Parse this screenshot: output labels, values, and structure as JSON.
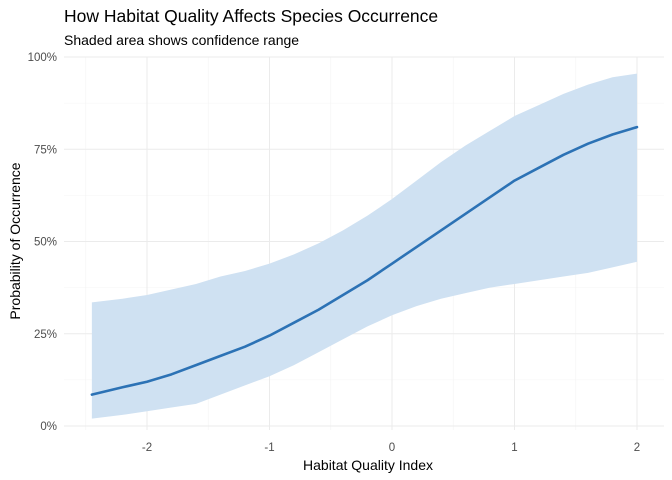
{
  "chart_data": {
    "type": "line",
    "title": "How Habitat Quality Affects Species Occurrence",
    "subtitle": "Shaded area shows confidence range",
    "xlabel": "Habitat Quality Index",
    "ylabel": "Probability of Occurrence",
    "xlim": [
      -2.6,
      2.2
    ],
    "ylim": [
      0,
      1
    ],
    "x_ticks": [
      -2,
      -1,
      0,
      1,
      2
    ],
    "x_tick_labels": [
      "-2",
      "-1",
      "0",
      "1",
      "2"
    ],
    "y_ticks": [
      0,
      0.25,
      0.5,
      0.75,
      1
    ],
    "y_tick_labels": [
      "0%",
      "25%",
      "50%",
      "75%",
      "100%"
    ],
    "grid": true,
    "legend": "none",
    "line_color": "#2c72b5",
    "band_color": "#cfe1f2",
    "series": [
      {
        "x": [
          -2.45,
          -2.2,
          -2.0,
          -1.8,
          -1.6,
          -1.4,
          -1.2,
          -1.0,
          -0.8,
          -0.6,
          -0.4,
          -0.2,
          0.0,
          0.2,
          0.4,
          0.6,
          0.8,
          1.0,
          1.2,
          1.4,
          1.6,
          1.8,
          2.0
        ],
        "y": [
          0.085,
          0.105,
          0.12,
          0.14,
          0.165,
          0.19,
          0.215,
          0.245,
          0.28,
          0.315,
          0.355,
          0.395,
          0.44,
          0.485,
          0.53,
          0.575,
          0.62,
          0.665,
          0.7,
          0.735,
          0.765,
          0.79,
          0.81
        ],
        "lower": [
          0.02,
          0.03,
          0.04,
          0.05,
          0.06,
          0.085,
          0.11,
          0.135,
          0.165,
          0.2,
          0.235,
          0.27,
          0.3,
          0.325,
          0.345,
          0.36,
          0.375,
          0.385,
          0.395,
          0.405,
          0.415,
          0.43,
          0.445
        ],
        "upper": [
          0.335,
          0.345,
          0.355,
          0.37,
          0.385,
          0.405,
          0.42,
          0.44,
          0.465,
          0.495,
          0.53,
          0.57,
          0.615,
          0.665,
          0.715,
          0.76,
          0.8,
          0.84,
          0.87,
          0.9,
          0.925,
          0.945,
          0.955
        ]
      }
    ]
  }
}
